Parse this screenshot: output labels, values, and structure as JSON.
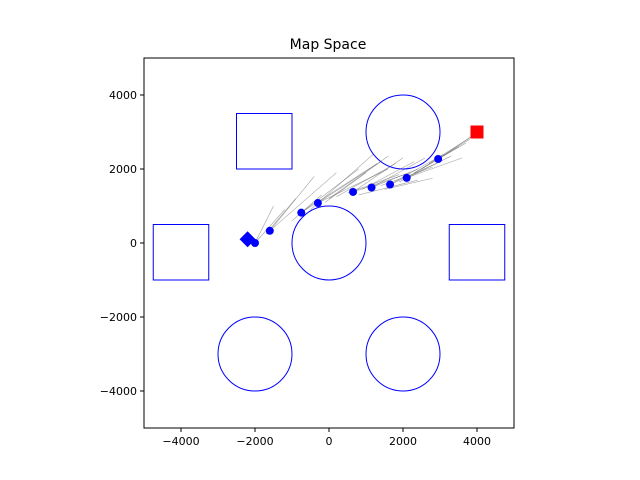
{
  "chart_data": {
    "type": "scatter",
    "title": "Map Space",
    "xlabel": "",
    "ylabel": "",
    "xlim": [
      -5000,
      5000
    ],
    "ylim": [
      -5000,
      5000
    ],
    "grid": false,
    "xticks": [
      -4000,
      -2000,
      0,
      2000,
      4000
    ],
    "yticks": [
      -4000,
      -2000,
      0,
      2000,
      4000
    ],
    "xtick_labels": [
      "−4000",
      "−2000",
      "0",
      "2000",
      "4000"
    ],
    "ytick_labels": [
      "−4000",
      "−2000",
      "0",
      "2000",
      "4000"
    ],
    "obstacle_color": "#0000ff",
    "obstacles": {
      "circles": [
        {
          "cx": 2000,
          "cy": 3000,
          "r": 1000
        },
        {
          "cx": 0,
          "cy": 0,
          "r": 1000
        },
        {
          "cx": -2000,
          "cy": -3000,
          "r": 1000
        },
        {
          "cx": 2000,
          "cy": -3000,
          "r": 1000
        }
      ],
      "rectangles": [
        {
          "x0": -2500,
          "y0": 2000,
          "x1": -1000,
          "y1": 3500
        },
        {
          "x0": -4750,
          "y0": -1000,
          "x1": -3250,
          "y1": 500
        },
        {
          "x0": 3250,
          "y0": -1000,
          "x1": 4750,
          "y1": 500
        }
      ]
    },
    "start": {
      "x": -2200,
      "y": 100,
      "marker": "diamond",
      "color": "#0000ff"
    },
    "goal": {
      "x": 4000,
      "y": 3000,
      "marker": "square",
      "color": "#ff0000"
    },
    "path": {
      "color": "#0000ff",
      "points": [
        {
          "x": -2000,
          "y": 0
        },
        {
          "x": -1600,
          "y": 330
        },
        {
          "x": -750,
          "y": 820
        },
        {
          "x": -300,
          "y": 1080
        },
        {
          "x": 650,
          "y": 1380
        },
        {
          "x": 1150,
          "y": 1500
        },
        {
          "x": 1650,
          "y": 1580
        },
        {
          "x": 2100,
          "y": 1760
        },
        {
          "x": 2950,
          "y": 2270
        }
      ]
    },
    "trajectories": {
      "color": "#555555",
      "lines": [
        [
          [
            -2000,
            0
          ],
          [
            -1200,
            900
          ]
        ],
        [
          [
            -2000,
            0
          ],
          [
            -1500,
            1000
          ]
        ],
        [
          [
            -1700,
            250
          ],
          [
            -900,
            1200
          ]
        ],
        [
          [
            -1600,
            330
          ],
          [
            -400,
            1800
          ]
        ],
        [
          [
            -1600,
            330
          ],
          [
            200,
            1900
          ]
        ],
        [
          [
            -750,
            820
          ],
          [
            800,
            2000
          ]
        ],
        [
          [
            -750,
            820
          ],
          [
            1300,
            2150
          ]
        ],
        [
          [
            -500,
            900
          ],
          [
            1200,
            2400
          ]
        ],
        [
          [
            -300,
            1080
          ],
          [
            1400,
            2200
          ]
        ],
        [
          [
            -300,
            1080
          ],
          [
            1600,
            2000
          ]
        ],
        [
          [
            0,
            1200
          ],
          [
            1600,
            2350
          ]
        ],
        [
          [
            200,
            1250
          ],
          [
            1800,
            2150
          ]
        ],
        [
          [
            650,
            1380
          ],
          [
            2000,
            2300
          ]
        ],
        [
          [
            650,
            1380
          ],
          [
            2200,
            1900
          ]
        ],
        [
          [
            900,
            1450
          ],
          [
            2300,
            2200
          ]
        ],
        [
          [
            1150,
            1500
          ],
          [
            2400,
            2000
          ]
        ],
        [
          [
            1150,
            1500
          ],
          [
            2600,
            2300
          ]
        ],
        [
          [
            1400,
            1550
          ],
          [
            2800,
            2050
          ]
        ],
        [
          [
            1650,
            1580
          ],
          [
            3000,
            2200
          ]
        ],
        [
          [
            1650,
            1580
          ],
          [
            3100,
            2400
          ]
        ],
        [
          [
            1900,
            1650
          ],
          [
            3300,
            2350
          ]
        ],
        [
          [
            2100,
            1760
          ],
          [
            3500,
            2600
          ]
        ],
        [
          [
            2100,
            1760
          ],
          [
            3600,
            2300
          ]
        ],
        [
          [
            2300,
            1900
          ],
          [
            3700,
            2700
          ]
        ],
        [
          [
            2500,
            2000
          ],
          [
            3800,
            2800
          ]
        ],
        [
          [
            2700,
            2150
          ],
          [
            3900,
            2900
          ]
        ],
        [
          [
            2950,
            2270
          ],
          [
            3950,
            2950
          ]
        ],
        [
          [
            800,
            1300
          ],
          [
            2400,
            1700
          ]
        ],
        [
          [
            1500,
            1450
          ],
          [
            2800,
            1750
          ]
        ],
        [
          [
            500,
            1350
          ],
          [
            1900,
            1850
          ]
        ],
        [
          [
            -100,
            1100
          ],
          [
            1000,
            1900
          ]
        ],
        [
          [
            -1000,
            600
          ],
          [
            -200,
            1300
          ]
        ]
      ]
    }
  }
}
